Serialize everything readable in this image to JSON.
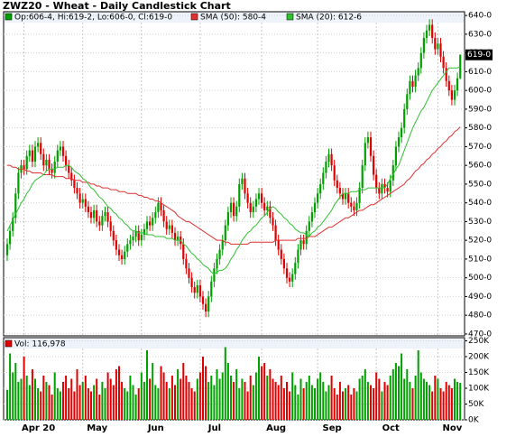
{
  "chart_data": {
    "type": "candlestick",
    "title": "ZWZ20 - Wheat - Daily Candlestick Chart",
    "ohlc_legend": "Op:606-4, Hi:619-2, Lo:606-0, Cl:619-0",
    "last_label": "619-0",
    "up_color": "#00a000",
    "down_color": "#e00000",
    "grid": true,
    "categories": [
      null,
      null,
      null,
      null,
      null,
      null,
      "Apr 20",
      null,
      null,
      null,
      null,
      null,
      null,
      null,
      null,
      null,
      null,
      null,
      null,
      null,
      null,
      null,
      null,
      null,
      null,
      null,
      null,
      "May",
      null,
      null,
      null,
      null,
      null,
      null,
      null,
      null,
      null,
      null,
      null,
      null,
      null,
      null,
      null,
      null,
      null,
      null,
      null,
      null,
      "Jun",
      null,
      null,
      null,
      null,
      null,
      null,
      null,
      null,
      null,
      null,
      null,
      null,
      null,
      null,
      null,
      null,
      null,
      null,
      null,
      null,
      "Jul",
      null,
      null,
      null,
      null,
      null,
      null,
      null,
      null,
      null,
      null,
      null,
      null,
      null,
      null,
      null,
      null,
      null,
      null,
      null,
      null,
      null,
      "Aug",
      null,
      null,
      null,
      null,
      null,
      null,
      null,
      null,
      null,
      null,
      null,
      null,
      null,
      null,
      null,
      null,
      null,
      null,
      null,
      "Sep",
      null,
      null,
      null,
      null,
      null,
      null,
      null,
      null,
      null,
      null,
      null,
      null,
      null,
      null,
      null,
      null,
      null,
      null,
      null,
      null,
      "Oct",
      null,
      null,
      null,
      null,
      null,
      null,
      null,
      null,
      null,
      null,
      null,
      null,
      null,
      null,
      null,
      null,
      null,
      null,
      null,
      null,
      null,
      "Nov",
      null,
      null,
      null,
      null,
      null,
      null,
      null,
      null
    ],
    "open": [
      512,
      518,
      525,
      532,
      545,
      556,
      560,
      558,
      565,
      568,
      562,
      570,
      572,
      566,
      560,
      563,
      558,
      556,
      562,
      568,
      570,
      565,
      560,
      556,
      552,
      548,
      545,
      540,
      542,
      538,
      535,
      532,
      536,
      530,
      528,
      533,
      535,
      530,
      525,
      520,
      515,
      512,
      510,
      514,
      518,
      520,
      522,
      525,
      520,
      523,
      526,
      530,
      528,
      532,
      535,
      540,
      536,
      530,
      526,
      528,
      524,
      520,
      522,
      518,
      510,
      505,
      500,
      495,
      492,
      496,
      490,
      486,
      482,
      490,
      498,
      505,
      510,
      515,
      520,
      528,
      535,
      540,
      533,
      538,
      550,
      553,
      545,
      540,
      535,
      538,
      542,
      545,
      540,
      536,
      538,
      532,
      528,
      520,
      515,
      510,
      505,
      500,
      498,
      502,
      508,
      515,
      520,
      518,
      525,
      530,
      535,
      540,
      545,
      550,
      556,
      562,
      566,
      560,
      552,
      548,
      545,
      542,
      545,
      540,
      538,
      536,
      540,
      548,
      560,
      572,
      575,
      565,
      555,
      548,
      545,
      550,
      548,
      546,
      552,
      560,
      570,
      575,
      580,
      590,
      598,
      605,
      602,
      608,
      612,
      620,
      628,
      632,
      635,
      628,
      622,
      625,
      618,
      612,
      605,
      600,
      595,
      600,
      606.5
    ],
    "high": [
      521,
      528,
      535,
      548,
      559,
      563,
      563,
      568,
      571,
      571,
      573,
      575,
      575,
      569,
      566,
      566,
      561,
      565,
      571,
      573,
      573,
      568,
      563,
      559,
      555,
      551,
      548,
      545,
      545,
      541,
      538,
      539,
      539,
      533,
      536,
      538,
      538,
      533,
      528,
      523,
      518,
      515,
      517,
      521,
      523,
      525,
      528,
      528,
      526,
      529,
      533,
      533,
      535,
      538,
      543,
      543,
      539,
      533,
      531,
      531,
      527,
      525,
      525,
      521,
      513,
      508,
      503,
      498,
      499,
      499,
      493,
      489,
      493,
      501,
      508,
      513,
      518,
      523,
      531,
      538,
      543,
      543,
      541,
      553,
      556,
      556,
      548,
      543,
      541,
      545,
      548,
      548,
      543,
      541,
      541,
      535,
      531,
      523,
      518,
      513,
      508,
      503,
      505,
      511,
      518,
      523,
      523,
      528,
      533,
      538,
      543,
      548,
      553,
      559,
      565,
      569,
      569,
      563,
      555,
      551,
      548,
      548,
      548,
      543,
      541,
      543,
      551,
      563,
      575,
      578,
      578,
      568,
      558,
      551,
      553,
      553,
      551,
      555,
      563,
      573,
      578,
      583,
      593,
      601,
      608,
      608,
      611,
      615,
      623,
      631,
      635,
      638,
      638,
      631,
      628,
      628,
      621,
      615,
      608,
      603,
      603,
      609.5,
      619.25
    ],
    "low": [
      509,
      515,
      522,
      529,
      542,
      553,
      555,
      555,
      562,
      559,
      559,
      567,
      563,
      557,
      557,
      555,
      553,
      553,
      559,
      565,
      562,
      557,
      553,
      549,
      545,
      542,
      537,
      537,
      535,
      532,
      529,
      529,
      527,
      525,
      525,
      530,
      527,
      522,
      517,
      512,
      509,
      507,
      507,
      511,
      515,
      517,
      519,
      517,
      517,
      520,
      523,
      525,
      525,
      529,
      532,
      533,
      527,
      523,
      523,
      521,
      517,
      517,
      515,
      507,
      502,
      497,
      492,
      489,
      489,
      487,
      483,
      479,
      479,
      487,
      495,
      502,
      507,
      512,
      517,
      525,
      532,
      530,
      530,
      535,
      547,
      542,
      537,
      532,
      532,
      535,
      539,
      537,
      533,
      533,
      529,
      525,
      517,
      512,
      507,
      502,
      497,
      495,
      495,
      499,
      505,
      512,
      515,
      515,
      522,
      527,
      532,
      537,
      542,
      547,
      553,
      559,
      557,
      549,
      545,
      542,
      539,
      539,
      537,
      535,
      533,
      533,
      537,
      545,
      557,
      569,
      562,
      552,
      545,
      542,
      542,
      545,
      543,
      543,
      549,
      557,
      567,
      572,
      577,
      587,
      595,
      599,
      599,
      605,
      609,
      617,
      625,
      629,
      625,
      619,
      619,
      615,
      609,
      602,
      597,
      592,
      592,
      597,
      606
    ],
    "close": [
      518,
      525,
      532,
      545,
      556,
      560,
      558,
      565,
      568,
      562,
      570,
      572,
      566,
      560,
      563,
      558,
      556,
      562,
      568,
      570,
      565,
      560,
      556,
      552,
      548,
      545,
      540,
      542,
      538,
      535,
      532,
      536,
      530,
      528,
      533,
      535,
      530,
      525,
      520,
      515,
      512,
      510,
      514,
      518,
      520,
      522,
      525,
      520,
      523,
      526,
      530,
      528,
      532,
      535,
      540,
      536,
      530,
      526,
      528,
      524,
      520,
      522,
      518,
      510,
      505,
      500,
      495,
      492,
      496,
      490,
      486,
      482,
      490,
      498,
      505,
      510,
      515,
      520,
      528,
      535,
      540,
      533,
      538,
      550,
      553,
      545,
      540,
      535,
      538,
      542,
      545,
      540,
      536,
      538,
      532,
      528,
      520,
      515,
      510,
      505,
      500,
      498,
      502,
      508,
      515,
      520,
      518,
      525,
      530,
      535,
      540,
      545,
      550,
      556,
      562,
      566,
      560,
      552,
      548,
      545,
      542,
      545,
      540,
      538,
      536,
      540,
      548,
      560,
      572,
      575,
      565,
      555,
      548,
      545,
      550,
      548,
      546,
      552,
      560,
      570,
      575,
      580,
      590,
      598,
      605,
      602,
      608,
      612,
      620,
      628,
      632,
      635,
      628,
      622,
      625,
      618,
      612,
      605,
      600,
      595,
      600,
      606.5,
      619
    ],
    "overlays": [
      {
        "name": "SMA (50): 580-4",
        "color": "#e03030",
        "values": [
          560,
          560,
          559,
          559,
          558,
          558,
          558,
          557,
          557,
          556,
          556,
          556,
          556,
          555,
          555,
          555,
          555,
          554,
          554,
          554,
          554,
          553,
          553,
          553,
          552,
          552,
          552,
          551,
          551,
          551,
          550,
          550,
          549,
          549,
          548,
          548,
          548,
          547,
          547,
          547,
          546,
          546,
          546,
          545,
          545,
          545,
          545,
          544,
          544,
          543,
          543,
          542,
          542,
          541,
          541,
          540,
          539,
          538,
          537,
          536,
          535,
          533,
          532,
          531,
          530,
          530,
          529,
          528,
          527,
          526,
          525,
          524,
          523,
          522,
          521,
          520,
          520,
          520,
          519,
          519,
          518,
          518,
          518,
          518,
          518,
          518,
          518,
          519,
          519,
          519,
          519,
          519,
          519,
          519,
          519,
          519,
          520,
          520,
          520,
          520,
          520,
          520,
          520,
          520,
          521,
          521,
          521,
          521,
          522,
          522,
          522,
          523,
          524,
          525,
          526,
          527,
          527,
          528,
          529,
          530,
          531,
          532,
          532,
          533,
          534,
          535,
          536,
          536,
          537,
          538,
          539,
          539,
          540,
          541,
          542,
          543,
          544,
          545,
          546,
          547,
          548,
          549,
          550,
          552,
          553,
          555,
          557,
          558,
          560,
          561,
          563,
          564,
          566,
          567,
          569,
          570,
          572,
          573,
          575,
          576,
          578,
          579,
          580.5
        ]
      },
      {
        "name": "SMA (20): 612-6",
        "color": "#30c030",
        "values": [
          525,
          528,
          531,
          534,
          537,
          540,
          542,
          545,
          547,
          550,
          552,
          553,
          554,
          555,
          557,
          558,
          558,
          558,
          559,
          559,
          559,
          560,
          560,
          559,
          557,
          556,
          555,
          553,
          552,
          550,
          548,
          547,
          545,
          543,
          542,
          540,
          538,
          537,
          535,
          534,
          532,
          531,
          529,
          528,
          526,
          525,
          525,
          524,
          524,
          524,
          523,
          523,
          523,
          522,
          522,
          522,
          522,
          521,
          521,
          521,
          520,
          520,
          520,
          518,
          517,
          515,
          513,
          512,
          510,
          509,
          507,
          506,
          505,
          503,
          502,
          503,
          504,
          504,
          505,
          507,
          510,
          512,
          515,
          517,
          520,
          522,
          524,
          525,
          527,
          528,
          530,
          532,
          533,
          535,
          537,
          538,
          537,
          535,
          534,
          532,
          531,
          529,
          528,
          526,
          525,
          524,
          524,
          523,
          522,
          524,
          525,
          527,
          528,
          530,
          532,
          534,
          536,
          539,
          541,
          543,
          545,
          545,
          545,
          546,
          546,
          546,
          547,
          547,
          547,
          548,
          548,
          548,
          548,
          548,
          548,
          548,
          550,
          553,
          555,
          558,
          560,
          564,
          568,
          572,
          576,
          580,
          583,
          586,
          589,
          591,
          594,
          597,
          600,
          602,
          604,
          606,
          608,
          610,
          612,
          612,
          612,
          612,
          612.75
        ]
      }
    ],
    "ylim": [
      469,
      642
    ],
    "yticks": [
      {
        "value": 640,
        "label": "640-0"
      },
      {
        "value": 630,
        "label": "630-0"
      },
      {
        "value": 620,
        "label": "620-0"
      },
      {
        "value": 610,
        "label": "610-0"
      },
      {
        "value": 600,
        "label": "600-0"
      },
      {
        "value": 590,
        "label": "590-0"
      },
      {
        "value": 580,
        "label": "580-0"
      },
      {
        "value": 570,
        "label": "570-0"
      },
      {
        "value": 560,
        "label": "560-0"
      },
      {
        "value": 550,
        "label": "550-0"
      },
      {
        "value": 540,
        "label": "540-0"
      },
      {
        "value": 530,
        "label": "530-0"
      },
      {
        "value": 520,
        "label": "520-0"
      },
      {
        "value": 510,
        "label": "510-0"
      },
      {
        "value": 500,
        "label": "500-0"
      },
      {
        "value": 490,
        "label": "490-0"
      },
      {
        "value": 480,
        "label": "480-0"
      },
      {
        "value": 470,
        "label": "470-0"
      }
    ],
    "volume": {
      "legend": "Vol: 116,978",
      "legend_color": "#e00000",
      "values": [
        95000,
        210000,
        150000,
        180000,
        120000,
        130000,
        200000,
        140000,
        110000,
        160000,
        130000,
        100000,
        90000,
        140000,
        120000,
        110000,
        80000,
        150000,
        100000,
        90000,
        120000,
        140000,
        100000,
        130000,
        90000,
        160000,
        110000,
        120000,
        140000,
        100000,
        90000,
        110000,
        130000,
        80000,
        120000,
        100000,
        150000,
        130000,
        110000,
        160000,
        170000,
        120000,
        100000,
        90000,
        140000,
        110000,
        80000,
        100000,
        150000,
        120000,
        220000,
        130000,
        180000,
        110000,
        100000,
        170000,
        150000,
        120000,
        100000,
        140000,
        110000,
        160000,
        130000,
        180000,
        140000,
        120000,
        100000,
        90000,
        130000,
        150000,
        200000,
        170000,
        120000,
        140000,
        110000,
        160000,
        130000,
        150000,
        230000,
        180000,
        140000,
        120000,
        160000,
        100000,
        130000,
        120000,
        90000,
        140000,
        110000,
        150000,
        200000,
        170000,
        180000,
        140000,
        160000,
        130000,
        120000,
        110000,
        140000,
        100000,
        120000,
        90000,
        150000,
        110000,
        80000,
        130000,
        100000,
        120000,
        140000,
        110000,
        100000,
        130000,
        150000,
        120000,
        90000,
        110000,
        140000,
        100000,
        80000,
        120000,
        90000,
        100000,
        110000,
        80000,
        100000,
        90000,
        130000,
        140000,
        160000,
        120000,
        110000,
        100000,
        150000,
        130000,
        90000,
        120000,
        110000,
        140000,
        160000,
        180000,
        170000,
        210000,
        130000,
        160000,
        120000,
        100000,
        140000,
        220000,
        150000,
        130000,
        120000,
        110000,
        90000,
        140000,
        130000,
        100000,
        90000,
        120000,
        110000,
        100000,
        130000,
        120000,
        116978
      ],
      "ylim": [
        0,
        260000
      ],
      "yticks": [
        {
          "value": 250000,
          "label": "250K"
        },
        {
          "value": 200000,
          "label": "200K"
        },
        {
          "value": 150000,
          "label": "150K"
        },
        {
          "value": 100000,
          "label": "100K"
        },
        {
          "value": 50000,
          "label": "50K"
        },
        {
          "value": 0,
          "label": "0K"
        }
      ]
    }
  }
}
